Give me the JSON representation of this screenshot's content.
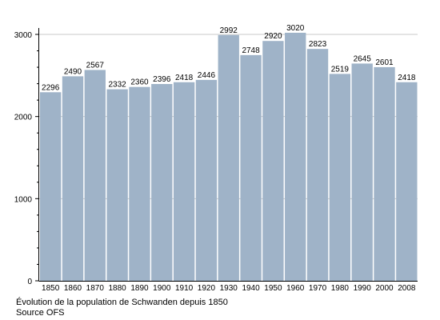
{
  "chart_data": {
    "type": "bar",
    "categories": [
      "1850",
      "1860",
      "1870",
      "1880",
      "1890",
      "1900",
      "1910",
      "1920",
      "1930",
      "1940",
      "1950",
      "1960",
      "1970",
      "1980",
      "1990",
      "2000",
      "2008"
    ],
    "values": [
      2296,
      2490,
      2567,
      2332,
      2360,
      2396,
      2418,
      2446,
      2992,
      2748,
      2920,
      3020,
      2823,
      2519,
      2645,
      2601,
      2418
    ],
    "data_labels": [
      "2296",
      "2490",
      "2567",
      "2332",
      "2360",
      "2396",
      "2418",
      "2446",
      "2992",
      "2748",
      "2920",
      "3020",
      "2823",
      "2519",
      "2645",
      "2601",
      "2418"
    ],
    "y_ticks": [
      0,
      1000,
      2000,
      3000
    ],
    "y_tick_labels": [
      "0",
      "1000",
      "2000",
      "3000"
    ],
    "ylim": [
      0,
      3000
    ],
    "grid": true,
    "bar_color": "#9fb3c8",
    "grid_color": "#c8c8c8",
    "legend": "none"
  },
  "caption": {
    "line1": "Évolution de la population de Schwanden depuis 1850",
    "line2": "Source OFS"
  }
}
